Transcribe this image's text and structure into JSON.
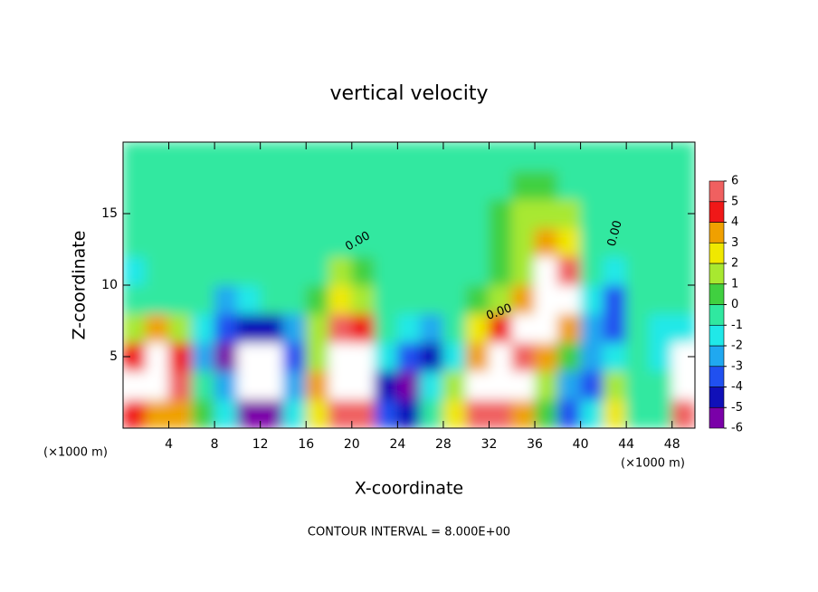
{
  "chart_data": {
    "type": "heatmap",
    "title": "vertical velocity",
    "x_label": "X-coordinate",
    "y_label": "Z-coordinate",
    "x_unit": "(×1000 m)",
    "y_unit": "(×1000 m)",
    "note": "CONTOUR INTERVAL = 8.000E+00",
    "contour_labels": [
      "0.00",
      "0.00",
      "0.00"
    ],
    "x": [
      1,
      3,
      5,
      7,
      9,
      11,
      13,
      15,
      17,
      19,
      21,
      23,
      25,
      27,
      29,
      31,
      33,
      35,
      37,
      39,
      41,
      43,
      45,
      47,
      49
    ],
    "y": [
      1,
      3,
      5,
      7,
      9,
      11,
      13,
      15,
      17,
      19
    ],
    "values": [
      [
        4,
        3,
        3,
        0,
        -2,
        -6,
        -6,
        -2,
        2,
        5,
        5,
        -4,
        -5,
        -1,
        2,
        5,
        5,
        3,
        0,
        -4,
        -2,
        2,
        -0.5,
        -0.5,
        5
      ],
      [
        6,
        7,
        5,
        -1,
        -3,
        -7,
        -7,
        -3,
        3,
        8,
        7,
        -5,
        -6,
        -2,
        1,
        6,
        7,
        6,
        1,
        -3,
        -4,
        1,
        -1,
        -0.5,
        7
      ],
      [
        4,
        7,
        4,
        -3,
        -6,
        -7,
        -7,
        -4,
        1,
        7,
        6,
        -2,
        -4,
        -5,
        -2,
        3,
        7,
        5,
        3,
        0.5,
        -3,
        -2,
        -1,
        -2,
        7
      ],
      [
        1,
        3,
        1,
        -2,
        -4,
        -5,
        -5,
        -3,
        1,
        5,
        4,
        -1,
        -2,
        -3,
        -1,
        2,
        4,
        6,
        7,
        3,
        -3,
        -4,
        -1,
        -2,
        -2
      ],
      [
        -1,
        -0.5,
        -0.5,
        -1,
        -3,
        -2,
        -1,
        -1,
        0.5,
        2,
        1,
        -0.5,
        -1,
        -1,
        -0.5,
        0.5,
        1,
        3,
        7,
        7,
        -2,
        -4,
        -1,
        -1,
        -1
      ],
      [
        -1.5,
        -0.5,
        -0.5,
        -0.5,
        -1,
        -0.5,
        -0.5,
        -0.5,
        -0.5,
        1,
        0.5,
        -0.5,
        -0.5,
        -1,
        -0.5,
        -0.5,
        0.5,
        1,
        6,
        5,
        -1,
        -1.5,
        -1,
        -0.5,
        -0.5
      ],
      [
        -1,
        -0.5,
        -0.5,
        -0.5,
        -0.5,
        -0.5,
        -0.5,
        -0.5,
        -0.5,
        -0.5,
        -0.5,
        -0.5,
        -0.5,
        -0.5,
        -0.5,
        -0.5,
        0.5,
        1,
        3,
        2,
        -0.5,
        -0.5,
        -0.5,
        -0.5,
        -0.5
      ],
      [
        -0.5,
        -0.5,
        -0.5,
        -0.5,
        -0.5,
        -0.5,
        -0.5,
        -0.5,
        -0.5,
        -0.5,
        -0.5,
        -0.5,
        -0.5,
        -0.5,
        -0.5,
        -0.5,
        0.5,
        1,
        1,
        1,
        -0.5,
        -0.5,
        -0.5,
        -0.5,
        -0.5
      ],
      [
        -0.5,
        -0.5,
        -0.5,
        -0.5,
        -0.5,
        -0.5,
        -0.5,
        -0.5,
        -0.5,
        -0.5,
        -0.5,
        -0.5,
        -0.5,
        -0.5,
        -0.5,
        -0.5,
        -0.5,
        0.5,
        0.5,
        -0.5,
        -0.5,
        -0.5,
        -0.5,
        -0.5,
        -0.5
      ],
      [
        -0.5,
        -0.5,
        -0.5,
        -0.5,
        -0.5,
        -0.5,
        -0.5,
        -0.5,
        -0.5,
        -0.5,
        -0.5,
        -0.5,
        -0.5,
        -0.5,
        -0.5,
        -0.5,
        -0.5,
        -0.5,
        -0.5,
        -0.5,
        -0.5,
        -0.5,
        -0.5,
        -0.5,
        -0.5
      ]
    ],
    "colors": [
      "#7a00a8",
      "#1010b8",
      "#2050f0",
      "#20a8f0",
      "#20e8e8",
      "#30e8a0",
      "#40d040",
      "#a8e830",
      "#f0e800",
      "#f0a000",
      "#f01818",
      "#f06060",
      "#f8b0b0"
    ],
    "over_color": "#ffffff",
    "xlim": [
      0,
      50
    ],
    "xticks": [
      4,
      8,
      12,
      16,
      20,
      24,
      28,
      32,
      36,
      40,
      44,
      48
    ],
    "ylim": [
      0,
      20
    ],
    "yticks": [
      5,
      10,
      15
    ],
    "clim": [
      -6,
      6
    ],
    "cticks": [
      6,
      5,
      4,
      3,
      2,
      1,
      0,
      -1,
      -2,
      -3,
      -4,
      -5,
      -6
    ]
  }
}
